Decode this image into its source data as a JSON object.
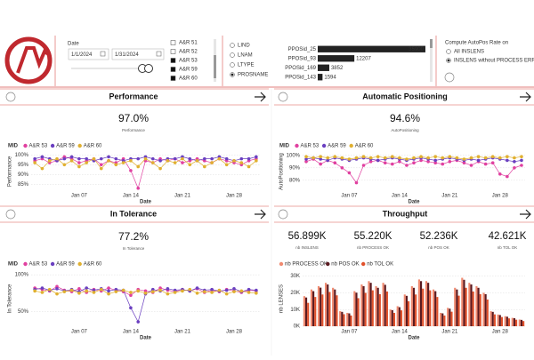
{
  "header": {
    "date_slicer": {
      "title": "Date",
      "start": "1/1/2024",
      "end": "1/31/2024"
    },
    "mid_slicer": {
      "items": [
        {
          "label": "A&R 51",
          "checked": false
        },
        {
          "label": "A&R 52",
          "checked": false
        },
        {
          "label": "A&R 53",
          "checked": true
        },
        {
          "label": "A&R 59",
          "checked": true
        },
        {
          "label": "A&R 60",
          "checked": true
        }
      ]
    },
    "group_by": {
      "options": [
        "LIND",
        "LNAM",
        "LTYPE",
        "PROSNAME"
      ],
      "selected": 3
    },
    "autopos_setting": {
      "title": "Compute AutoPos Rate on",
      "options": [
        "All INSLENS",
        "INSLENS without PROCESS ERRORS"
      ],
      "selected": 1
    }
  },
  "panels": [
    {
      "title": "Performance",
      "kpis": [
        {
          "value": "97.0%",
          "label": "Performance"
        }
      ]
    },
    {
      "title": "Automatic Positioning",
      "kpis": [
        {
          "value": "94.6%",
          "label": "AutoPositioning"
        }
      ]
    },
    {
      "title": "In Tolerance",
      "kpis": [
        {
          "value": "77.2%",
          "label": "In Tolerance"
        }
      ]
    },
    {
      "title": "Throughput",
      "kpis": [
        {
          "value": "56.899K",
          "label": "nb INSLENS"
        },
        {
          "value": "55.220K",
          "label": "nb PROCESS OK"
        },
        {
          "value": "52.236K",
          "label": "nb POS OK"
        },
        {
          "value": "42.621K",
          "label": "nb TOL OK"
        }
      ]
    }
  ],
  "chart_data": [
    {
      "type": "line",
      "legend_title": "MID",
      "xlabel": "Date",
      "ylabel": "Performance",
      "grid": true,
      "categories": [
        null,
        null,
        null,
        null,
        null,
        null,
        "Jan 07",
        null,
        null,
        null,
        null,
        null,
        null,
        "Jan 14",
        null,
        null,
        null,
        null,
        null,
        null,
        "Jan 21",
        null,
        null,
        null,
        null,
        null,
        null,
        "Jan 28",
        null,
        null,
        null
      ],
      "ylim": [
        82,
        101
      ],
      "yticks": [
        {
          "value": 100,
          "label": "100%"
        },
        {
          "value": 95,
          "label": "95%"
        },
        {
          "value": 90,
          "label": "90%"
        },
        {
          "value": 85,
          "label": "85%"
        }
      ],
      "series": [
        {
          "name": "A&R 53",
          "color": "#e040a0",
          "values": [
            97,
            98,
            96,
            97,
            99,
            98,
            96,
            97,
            98,
            95,
            97,
            96,
            98,
            92,
            83,
            97,
            96,
            98,
            97,
            98,
            96,
            97,
            98,
            97,
            96,
            98,
            97,
            96,
            95,
            97,
            98
          ]
        },
        {
          "name": "A&R 59",
          "color": "#6a3fc0",
          "values": [
            98,
            99,
            98,
            97,
            98,
            99,
            98,
            98,
            97,
            98,
            99,
            98,
            97,
            98,
            98,
            99,
            98,
            97,
            98,
            98,
            99,
            98,
            97,
            98,
            98,
            99,
            98,
            97,
            98,
            98,
            99
          ]
        },
        {
          "name": "A&R 60",
          "color": "#e0b030",
          "values": [
            96,
            93,
            97,
            98,
            95,
            97,
            94,
            96,
            98,
            93,
            97,
            95,
            96,
            97,
            94,
            98,
            96,
            93,
            97,
            96,
            98,
            95,
            97,
            94,
            96,
            98,
            95,
            97,
            96,
            94,
            97
          ]
        }
      ]
    },
    {
      "type": "line",
      "legend_title": "MID",
      "xlabel": "Date",
      "ylabel": "AutoPositioning",
      "grid": true,
      "categories": [
        null,
        null,
        null,
        null,
        null,
        null,
        "Jan 07",
        null,
        null,
        null,
        null,
        null,
        null,
        "Jan 14",
        null,
        null,
        null,
        null,
        null,
        null,
        "Jan 21",
        null,
        null,
        null,
        null,
        null,
        null,
        "Jan 28",
        null,
        null,
        null
      ],
      "ylim": [
        72,
        102
      ],
      "yticks": [
        {
          "value": 100,
          "label": "100%"
        },
        {
          "value": 90,
          "label": "90%"
        },
        {
          "value": 80,
          "label": "80%"
        }
      ],
      "series": [
        {
          "name": "A&R 53",
          "color": "#e040a0",
          "values": [
            95,
            97,
            93,
            96,
            94,
            90,
            86,
            78,
            92,
            95,
            96,
            94,
            93,
            95,
            92,
            94,
            96,
            95,
            94,
            93,
            95,
            96,
            94,
            92,
            95,
            93,
            94,
            85,
            83,
            90,
            92
          ]
        },
        {
          "name": "A&R 59",
          "color": "#6a3fc0",
          "values": [
            97,
            98,
            97,
            96,
            98,
            97,
            96,
            97,
            98,
            97,
            96,
            97,
            98,
            97,
            96,
            97,
            98,
            97,
            96,
            97,
            98,
            97,
            96,
            97,
            96,
            97,
            98,
            97,
            96,
            95,
            96
          ]
        },
        {
          "name": "A&R 60",
          "color": "#e0b030",
          "values": [
            99,
            98,
            99,
            98,
            99,
            98,
            97,
            98,
            99,
            98,
            99,
            98,
            99,
            98,
            97,
            98,
            99,
            98,
            99,
            98,
            99,
            98,
            97,
            98,
            99,
            98,
            99,
            98,
            99,
            98,
            99
          ]
        }
      ]
    },
    {
      "type": "line",
      "legend_title": "MID",
      "xlabel": "Date",
      "ylabel": "In Tolerance",
      "grid": true,
      "categories": [
        null,
        null,
        null,
        null,
        null,
        null,
        "Jan 07",
        null,
        null,
        null,
        null,
        null,
        null,
        "Jan 14",
        null,
        null,
        null,
        null,
        null,
        null,
        "Jan 21",
        null,
        null,
        null,
        null,
        null,
        null,
        "Jan 28",
        null,
        null,
        null
      ],
      "ylim": [
        30,
        105
      ],
      "yticks": [
        {
          "value": 100,
          "label": "100%"
        },
        {
          "value": 50,
          "label": "50%"
        }
      ],
      "series": [
        {
          "name": "A&R 53",
          "color": "#e040a0",
          "values": [
            82,
            80,
            78,
            84,
            79,
            77,
            81,
            76,
            80,
            78,
            82,
            79,
            77,
            72,
            80,
            78,
            76,
            82,
            79,
            77,
            80,
            78,
            81,
            76,
            79,
            77,
            80,
            78,
            76,
            79,
            78
          ]
        },
        {
          "name": "A&R 59",
          "color": "#6a3fc0",
          "values": [
            80,
            82,
            79,
            81,
            78,
            80,
            77,
            82,
            79,
            81,
            78,
            80,
            79,
            55,
            36,
            74,
            80,
            78,
            81,
            79,
            80,
            78,
            82,
            79,
            80,
            78,
            79,
            81,
            77,
            80,
            79
          ]
        },
        {
          "name": "A&R 60",
          "color": "#e0b030",
          "values": [
            78,
            76,
            80,
            74,
            77,
            79,
            75,
            78,
            76,
            80,
            74,
            77,
            79,
            76,
            78,
            75,
            77,
            79,
            74,
            76,
            78,
            80,
            75,
            77,
            76,
            79,
            74,
            77,
            78,
            76,
            75
          ]
        }
      ]
    },
    {
      "type": "bar",
      "xlabel": "Date",
      "ylabel": "nb LENSES",
      "grid": true,
      "categories": [
        null,
        null,
        null,
        null,
        null,
        null,
        "Jan 07",
        null,
        null,
        null,
        null,
        null,
        null,
        "Jan 14",
        null,
        null,
        null,
        null,
        null,
        null,
        "Jan 21",
        null,
        null,
        null,
        null,
        null,
        null,
        "Jan 28",
        null,
        null,
        null
      ],
      "ylim": [
        0,
        33000
      ],
      "yticks": [
        {
          "value": 0,
          "label": "0K"
        },
        {
          "value": 10000,
          "label": "10K"
        },
        {
          "value": 20000,
          "label": "20K"
        },
        {
          "value": 30000,
          "label": "30K"
        }
      ],
      "series": [
        {
          "name": "nb PROCESS OK",
          "color": "#f08a70",
          "values": [
            18000,
            22000,
            24000,
            26000,
            23000,
            9000,
            8000,
            21000,
            25000,
            27000,
            24000,
            26000,
            10000,
            12000,
            19000,
            24000,
            28000,
            27000,
            22000,
            8000,
            11000,
            23000,
            29000,
            26000,
            24000,
            20000,
            9000,
            7000,
            6000,
            5000,
            4000
          ]
        },
        {
          "name": "nb POS OK",
          "color": "#5a1a20",
          "values": [
            17200,
            21000,
            23100,
            25000,
            22000,
            8600,
            7700,
            20100,
            24000,
            26000,
            23000,
            24800,
            9600,
            11400,
            18200,
            23000,
            27000,
            26000,
            21000,
            7700,
            10500,
            22000,
            27800,
            25000,
            23000,
            19200,
            8600,
            6700,
            5700,
            4800,
            3800
          ]
        },
        {
          "name": "nb TOL OK",
          "color": "#e0502a",
          "values": [
            14000,
            17500,
            19000,
            20500,
            18500,
            7200,
            6400,
            16800,
            20000,
            21500,
            19200,
            20800,
            8000,
            9500,
            15000,
            19000,
            22500,
            21500,
            17500,
            6400,
            8700,
            18300,
            23000,
            20800,
            19200,
            16000,
            7100,
            5500,
            4700,
            3900,
            3100
          ]
        }
      ]
    },
    {
      "type": "bar",
      "orientation": "horizontal",
      "color": "#222222",
      "xlim": [
        0,
        36500
      ],
      "categories": [
        "PPOSid_25",
        "PPOSid_93",
        "PPOSid_169",
        "PPOSid_143"
      ],
      "values": [
        35900,
        12207,
        3852,
        1594
      ]
    }
  ]
}
